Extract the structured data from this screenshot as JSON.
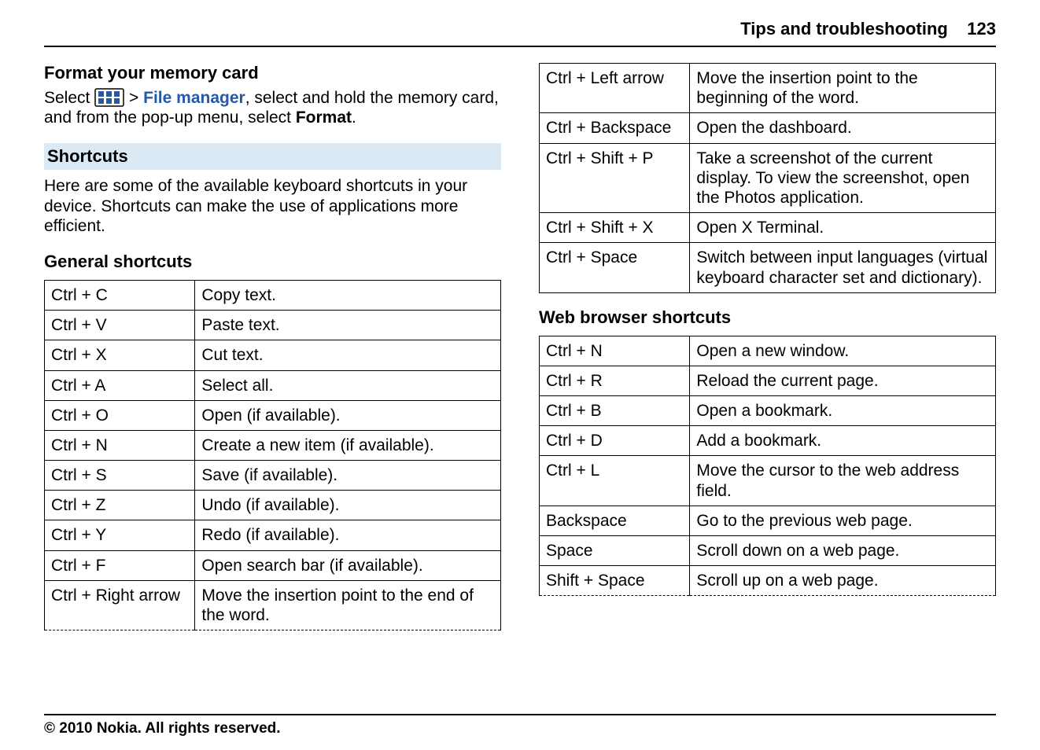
{
  "header": {
    "section": "Tips and troubleshooting",
    "page_number": "123"
  },
  "format_card": {
    "title": "Format your memory card",
    "text_prefix": "Select ",
    "link_label": "File manager",
    "text_mid": ", select and hold the memory card, and from the pop-up menu, select ",
    "format_label": "Format",
    "text_suffix": "."
  },
  "shortcuts_bar": "Shortcuts",
  "shortcuts_intro": "Here are some of the available keyboard shortcuts in your device. Shortcuts can make the use of applications more efficient.",
  "general": {
    "title": "General shortcuts",
    "rows": [
      {
        "key": "Ctrl + C",
        "desc": "Copy text."
      },
      {
        "key": "Ctrl + V",
        "desc": "Paste text."
      },
      {
        "key": "Ctrl + X",
        "desc": "Cut text."
      },
      {
        "key": "Ctrl + A",
        "desc": "Select all."
      },
      {
        "key": "Ctrl + O",
        "desc": "Open (if available)."
      },
      {
        "key": "Ctrl + N",
        "desc": "Create a new item (if available)."
      },
      {
        "key": "Ctrl + S",
        "desc": "Save (if available)."
      },
      {
        "key": "Ctrl + Z",
        "desc": "Undo (if available)."
      },
      {
        "key": "Ctrl + Y",
        "desc": "Redo (if available)."
      },
      {
        "key": "Ctrl + F",
        "desc": "Open search bar (if available)."
      },
      {
        "key": "Ctrl + Right arrow",
        "desc": "Move the insertion point to the end of the word."
      }
    ]
  },
  "general_cont": {
    "rows": [
      {
        "key": "Ctrl + Left arrow",
        "desc": "Move the insertion point to the beginning of the word."
      },
      {
        "key": "Ctrl + Backspace",
        "desc": "Open the dashboard."
      },
      {
        "key": "Ctrl + Shift + P",
        "desc": "Take a screenshot of the current display. To view the screenshot, open the Photos application."
      },
      {
        "key": "Ctrl + Shift + X",
        "desc": "Open X Terminal."
      },
      {
        "key": "Ctrl + Space",
        "desc": "Switch between input languages (virtual keyboard character set and dictionary)."
      }
    ]
  },
  "web": {
    "title": "Web browser shortcuts",
    "rows": [
      {
        "key": "Ctrl + N",
        "desc": "Open a new window."
      },
      {
        "key": "Ctrl + R",
        "desc": "Reload the current page."
      },
      {
        "key": "Ctrl + B",
        "desc": "Open a bookmark."
      },
      {
        "key": "Ctrl + D",
        "desc": "Add a bookmark."
      },
      {
        "key": "Ctrl + L",
        "desc": "Move the cursor to the web address field."
      },
      {
        "key": "Backspace",
        "desc": "Go to the previous web page."
      },
      {
        "key": "Space",
        "desc": "Scroll down on a web page."
      },
      {
        "key": "Shift + Space",
        "desc": "Scroll up on a web page."
      }
    ]
  },
  "footer": "© 2010 Nokia. All rights reserved.",
  "colors": {
    "link_blue": "#2459a8",
    "box_bg": "#dbe9f4"
  }
}
